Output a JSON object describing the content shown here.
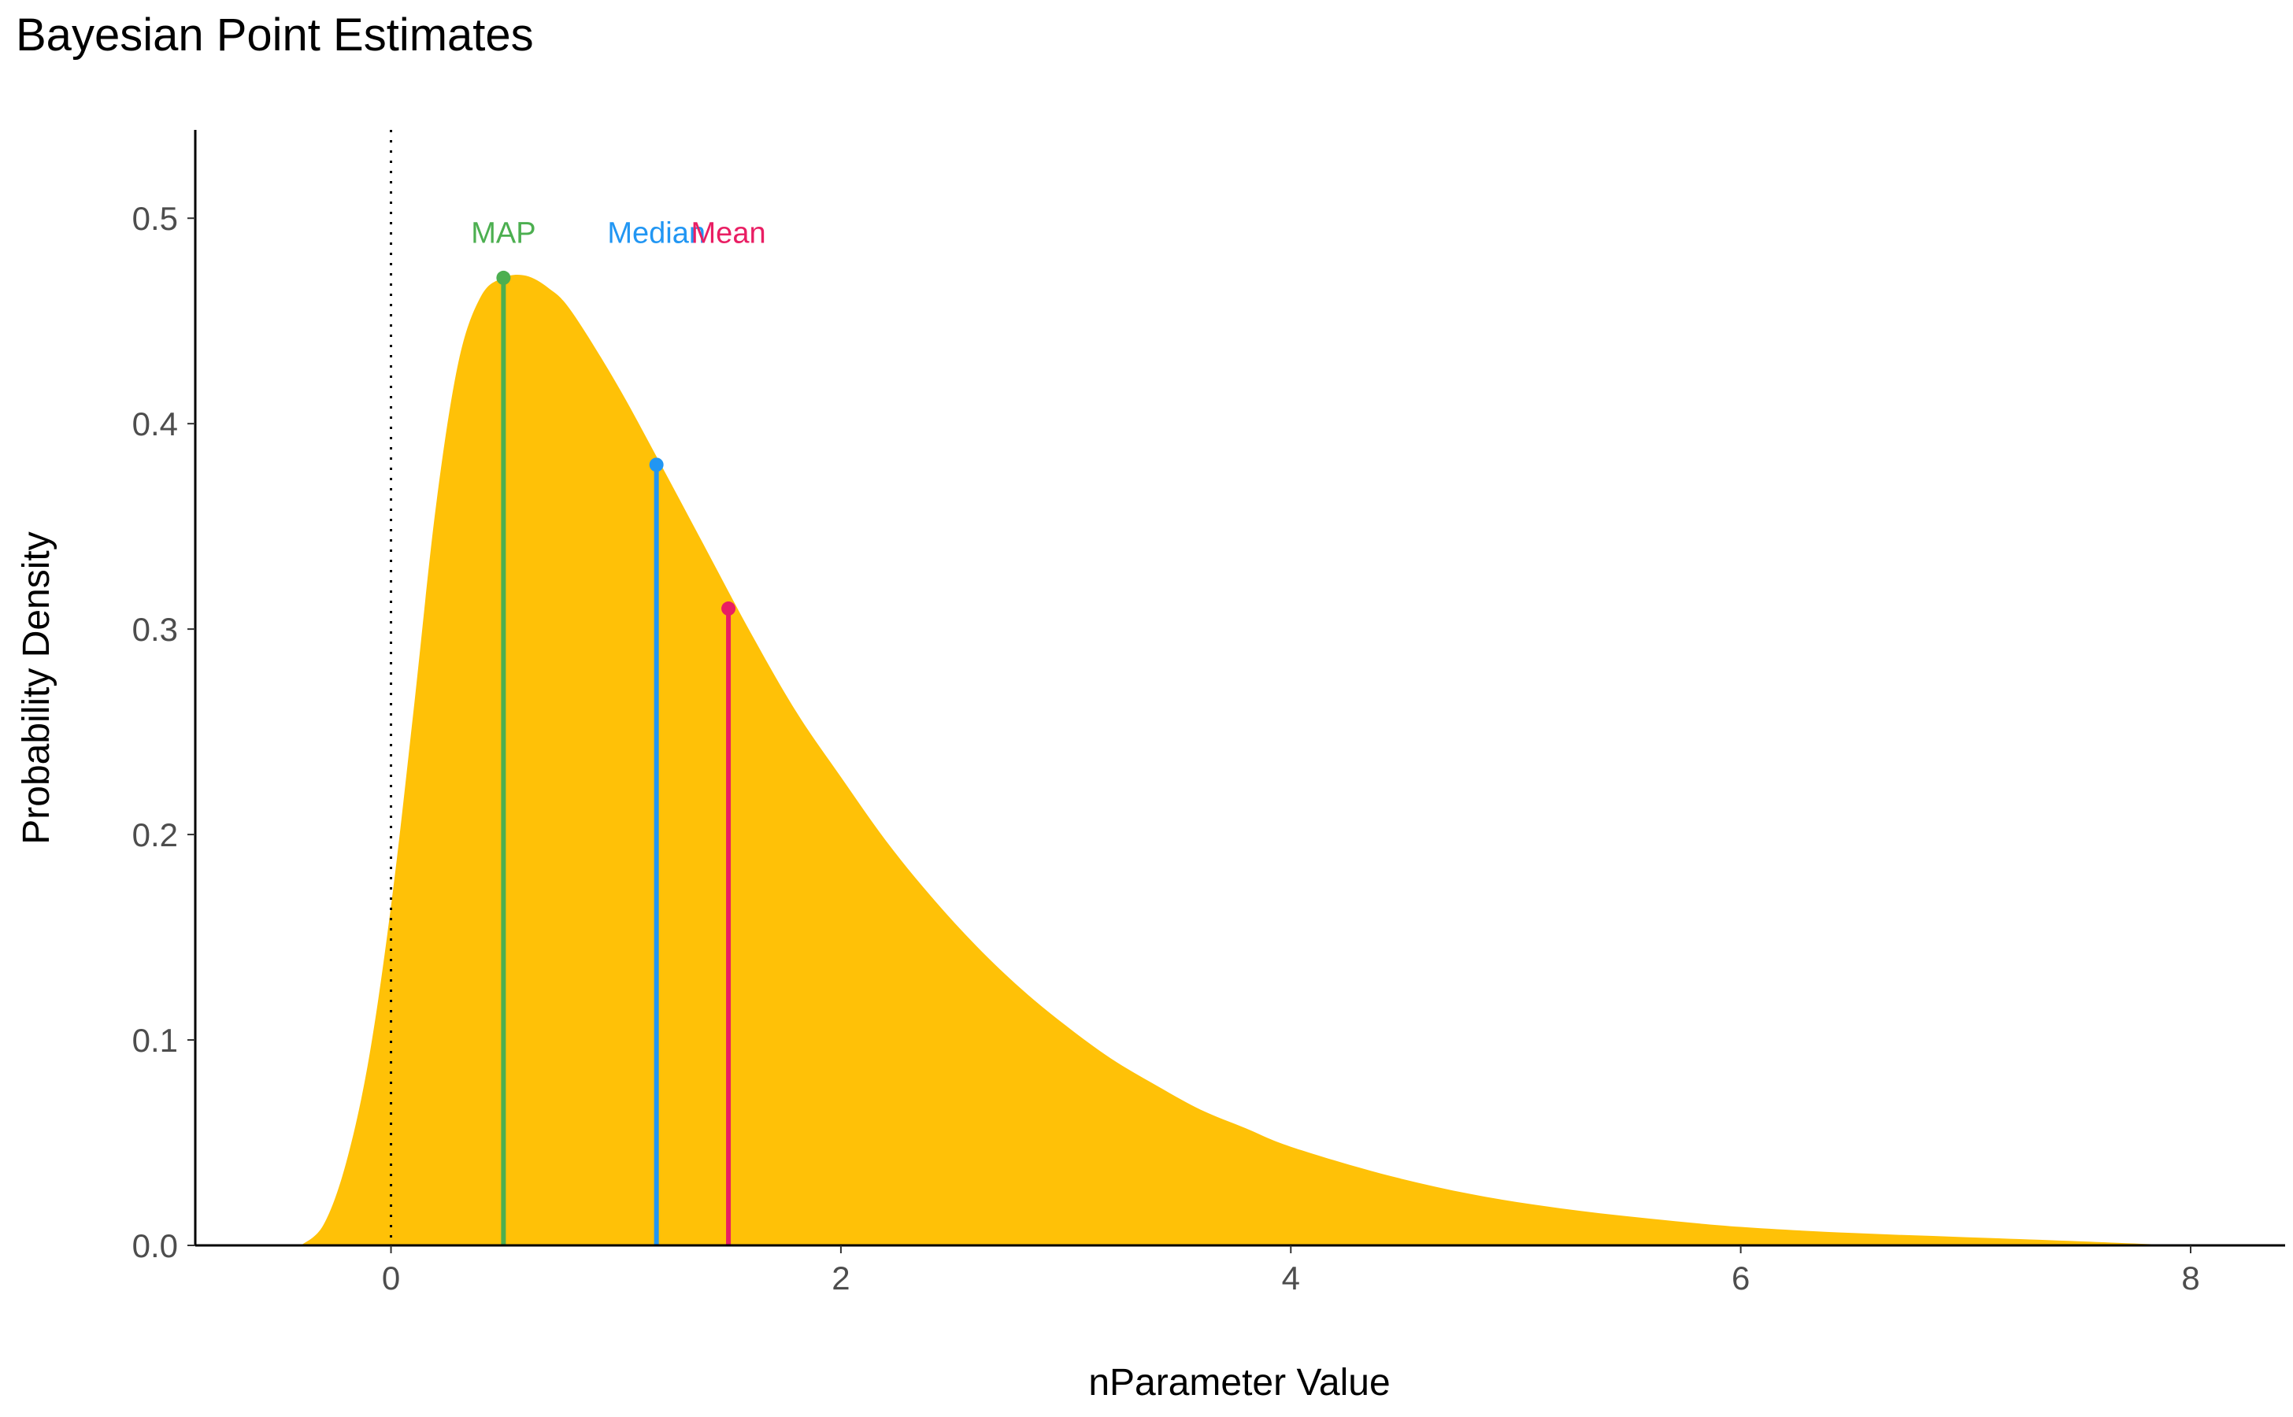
{
  "chart_data": {
    "type": "area",
    "title": "Bayesian Point Estimates",
    "xlabel": "nParameter Value",
    "ylabel": "Probability Density",
    "xlim": [
      -0.87,
      8.42
    ],
    "ylim": [
      0,
      0.543
    ],
    "x_ticks": [
      "0",
      "2",
      "4",
      "6",
      "8"
    ],
    "y_ticks": [
      "0.0",
      "0.1",
      "0.2",
      "0.3",
      "0.4",
      "0.5"
    ],
    "grid": false,
    "fill_color": "#FFC107",
    "density": {
      "x": [
        -0.4,
        -0.3,
        -0.2,
        -0.1,
        0.0,
        0.1,
        0.2,
        0.3,
        0.4,
        0.5,
        0.6,
        0.7,
        0.8,
        1.0,
        1.2,
        1.4,
        1.6,
        1.8,
        2.0,
        2.2,
        2.4,
        2.6,
        2.8,
        3.0,
        3.2,
        3.4,
        3.6,
        3.8,
        4.0,
        4.4,
        4.8,
        5.2,
        5.6,
        6.0,
        6.5,
        7.0,
        7.5,
        7.95
      ],
      "y": [
        0.0,
        0.01,
        0.04,
        0.09,
        0.165,
        0.26,
        0.36,
        0.43,
        0.462,
        0.471,
        0.472,
        0.466,
        0.455,
        0.42,
        0.38,
        0.339,
        0.298,
        0.26,
        0.228,
        0.197,
        0.17,
        0.146,
        0.125,
        0.107,
        0.091,
        0.078,
        0.066,
        0.057,
        0.048,
        0.035,
        0.025,
        0.018,
        0.013,
        0.009,
        0.006,
        0.004,
        0.002,
        0.0
      ]
    },
    "zero_line": {
      "x": 0,
      "style": "dotted"
    },
    "series": [
      {
        "name": "MAP",
        "x": 0.5,
        "y": 0.471,
        "color": "#4CAF50"
      },
      {
        "name": "Median",
        "x": 1.18,
        "y": 0.38,
        "color": "#2196F3"
      },
      {
        "name": "Mean",
        "x": 1.5,
        "y": 0.31,
        "color": "#E91E63"
      }
    ]
  }
}
